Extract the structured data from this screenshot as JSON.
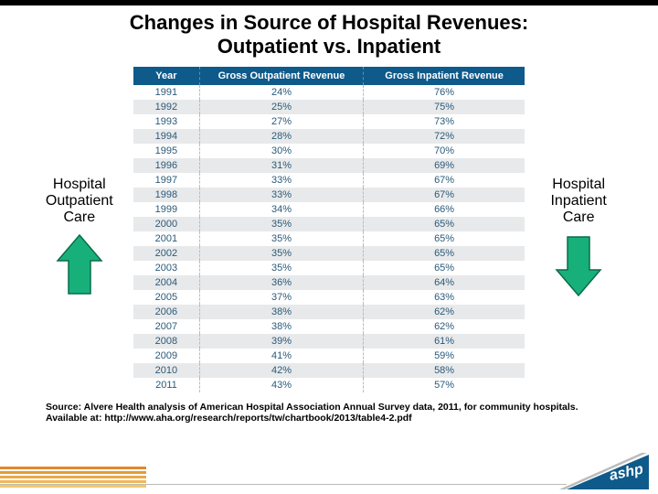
{
  "title_line1": "Changes in Source of Hospital Revenues:",
  "title_line2": "Outpatient vs. Inpatient",
  "left_label_l1": "Hospital",
  "left_label_l2": "Outpatient",
  "left_label_l3": "Care",
  "right_label_l1": "Hospital",
  "right_label_l2": "Inpatient",
  "right_label_l3": "Care",
  "table": {
    "header_bg": "#0e5a8a",
    "header_fg": "#ffffff",
    "cell_fg": "#2a5a7a",
    "row_alt_bg": "#e8e9ea",
    "columns": [
      "Year",
      "Gross Outpatient Revenue",
      "Gross Inpatient Revenue"
    ],
    "rows": [
      [
        "1991",
        "24%",
        "76%"
      ],
      [
        "1992",
        "25%",
        "75%"
      ],
      [
        "1993",
        "27%",
        "73%"
      ],
      [
        "1994",
        "28%",
        "72%"
      ],
      [
        "1995",
        "30%",
        "70%"
      ],
      [
        "1996",
        "31%",
        "69%"
      ],
      [
        "1997",
        "33%",
        "67%"
      ],
      [
        "1998",
        "33%",
        "67%"
      ],
      [
        "1999",
        "34%",
        "66%"
      ],
      [
        "2000",
        "35%",
        "65%"
      ],
      [
        "2001",
        "35%",
        "65%"
      ],
      [
        "2002",
        "35%",
        "65%"
      ],
      [
        "2003",
        "35%",
        "65%"
      ],
      [
        "2004",
        "36%",
        "64%"
      ],
      [
        "2005",
        "37%",
        "63%"
      ],
      [
        "2006",
        "38%",
        "62%"
      ],
      [
        "2007",
        "38%",
        "62%"
      ],
      [
        "2008",
        "39%",
        "61%"
      ],
      [
        "2009",
        "41%",
        "59%"
      ],
      [
        "2010",
        "42%",
        "58%"
      ],
      [
        "2011",
        "43%",
        "57%"
      ]
    ]
  },
  "arrows": {
    "up_fill": "#18b07a",
    "up_stroke": "#0a6b4a",
    "down_fill": "#18b07a",
    "down_stroke": "#0a6b4a"
  },
  "source_text": "Source: Alvere Health analysis of American Hospital Association Annual Survey data, 2011, for community hospitals.  Available at: http://www.aha.org/research/reports/tw/chartbook/2013/table4-2.pdf",
  "footer": {
    "stripe_colors": [
      "#e08a2a",
      "#e59a3a",
      "#eaa94a",
      "#efb85a",
      "#f4c76a"
    ],
    "logo_text": "ashp",
    "logo_bg": "#0e5a8a",
    "logo_accent": "#bbbbbb"
  }
}
